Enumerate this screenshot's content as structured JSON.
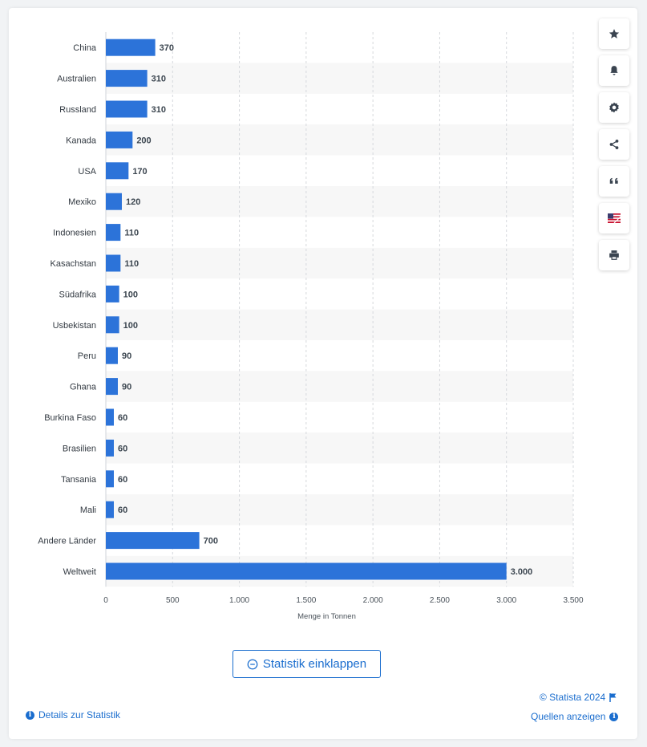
{
  "chart_data": {
    "type": "bar",
    "orientation": "horizontal",
    "categories": [
      "China",
      "Australien",
      "Russland",
      "Kanada",
      "USA",
      "Mexiko",
      "Indonesien",
      "Kasachstan",
      "Südafrika",
      "Usbekistan",
      "Peru",
      "Ghana",
      "Burkina Faso",
      "Brasilien",
      "Tansania",
      "Mali",
      "Andere Länder",
      "Weltweit"
    ],
    "values": [
      370,
      310,
      310,
      200,
      170,
      120,
      110,
      110,
      100,
      100,
      90,
      90,
      60,
      60,
      60,
      60,
      700,
      3000
    ],
    "value_labels": [
      "370",
      "310",
      "310",
      "200",
      "170",
      "120",
      "110",
      "110",
      "100",
      "100",
      "90",
      "90",
      "60",
      "60",
      "60",
      "60",
      "700",
      "3.000"
    ],
    "xlabel": "Menge in Tonnen",
    "xlim": [
      0,
      3500
    ],
    "xticks": [
      0,
      500,
      1000,
      1500,
      2000,
      2500,
      3000,
      3500
    ],
    "xtick_labels": [
      "0",
      "500",
      "1.000",
      "1.500",
      "2.000",
      "2.500",
      "3.000",
      "3.500"
    ],
    "grid": true,
    "bar_color": "#2c73d9",
    "stripe_color": "#f7f7f7"
  },
  "toolbar": {
    "buttons": [
      "star-icon",
      "bell-icon",
      "gear-icon",
      "share-icon",
      "quote-icon",
      "flag-icon",
      "print-icon"
    ]
  },
  "footer": {
    "collapse_label": "Statistik einklappen",
    "details_label": "Details zur Statistik",
    "copyright": "© Statista 2024",
    "sources_label": "Quellen anzeigen"
  },
  "colors": {
    "accent": "#1a6dce"
  }
}
